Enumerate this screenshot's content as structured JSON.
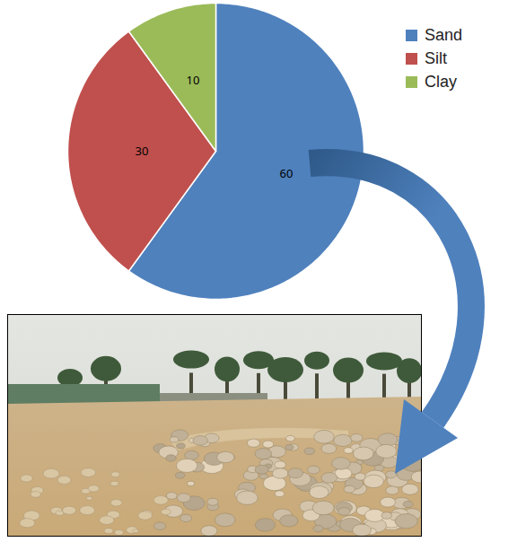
{
  "chart_data": {
    "type": "pie",
    "categories": [
      "Sand",
      "Silt",
      "Clay"
    ],
    "values": [
      60,
      30,
      10
    ],
    "colors": [
      "#4f81bd",
      "#c0504d",
      "#9bbb59"
    ],
    "legend": "top-right",
    "data_labels": true
  }
}
